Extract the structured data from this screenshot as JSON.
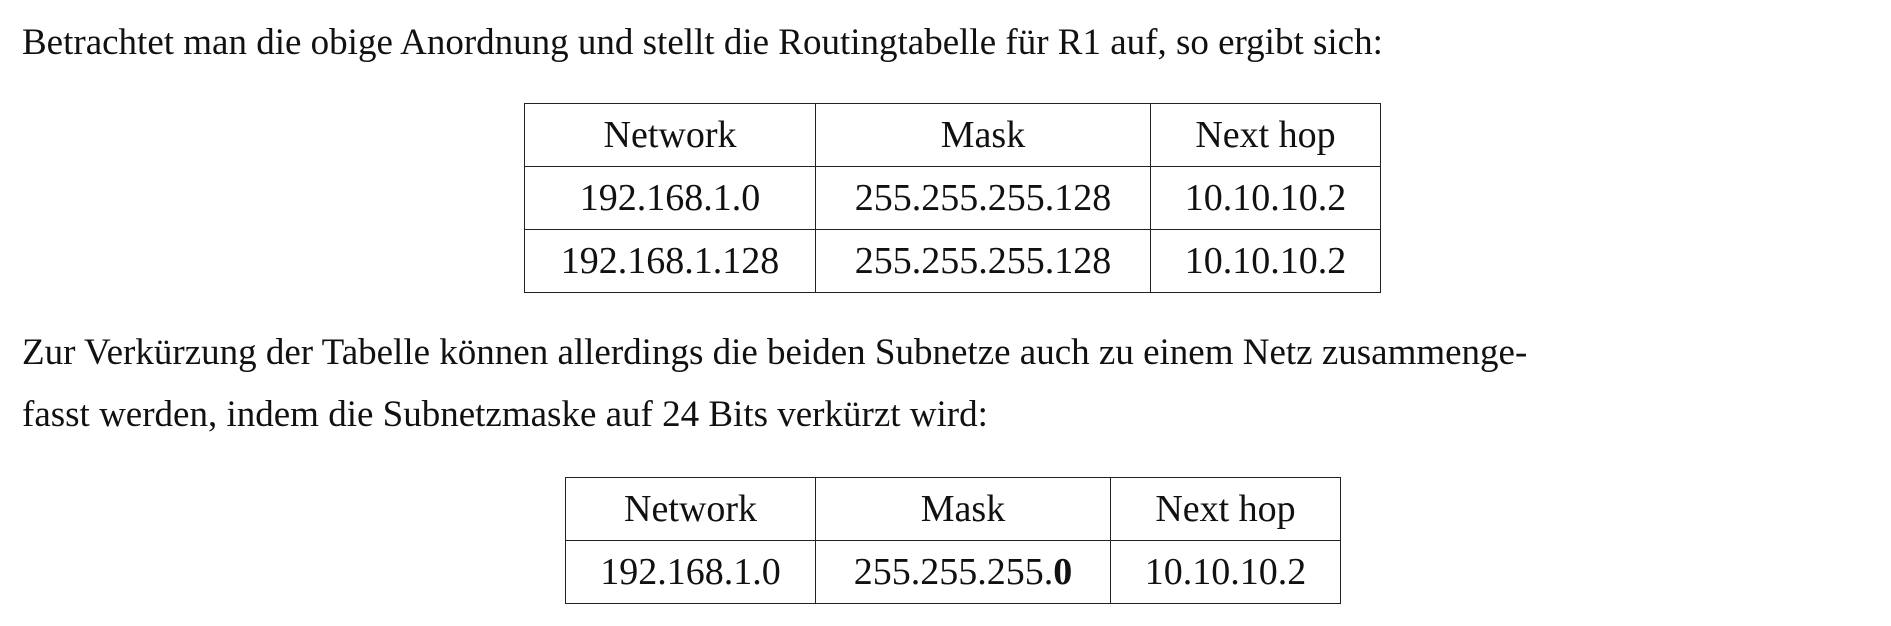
{
  "paragraph1": "Betrachtet man die obige Anordnung und stellt die Routingtabelle für R1 auf, so ergibt sich:",
  "table1": {
    "headers": [
      "Network",
      "Mask",
      "Next hop"
    ],
    "rows": [
      [
        "192.168.1.0",
        "255.255.255.128",
        "10.10.10.2"
      ],
      [
        "192.168.1.128",
        "255.255.255.128",
        "10.10.10.2"
      ]
    ]
  },
  "paragraph2": {
    "line1": "Zur Verkürzung der Tabelle können allerdings die beiden Subnetze auch zu einem Netz zusammenge-",
    "line2": "fasst werden, indem die Subnetzmaske auf 24 Bits verkürzt wird:"
  },
  "table2": {
    "headers": [
      "Network",
      "Mask",
      "Next hop"
    ],
    "rows": [
      {
        "network": "192.168.1.0",
        "mask_prefix": "255.255.255.",
        "mask_bold": "0",
        "next_hop": "10.10.10.2"
      }
    ]
  }
}
